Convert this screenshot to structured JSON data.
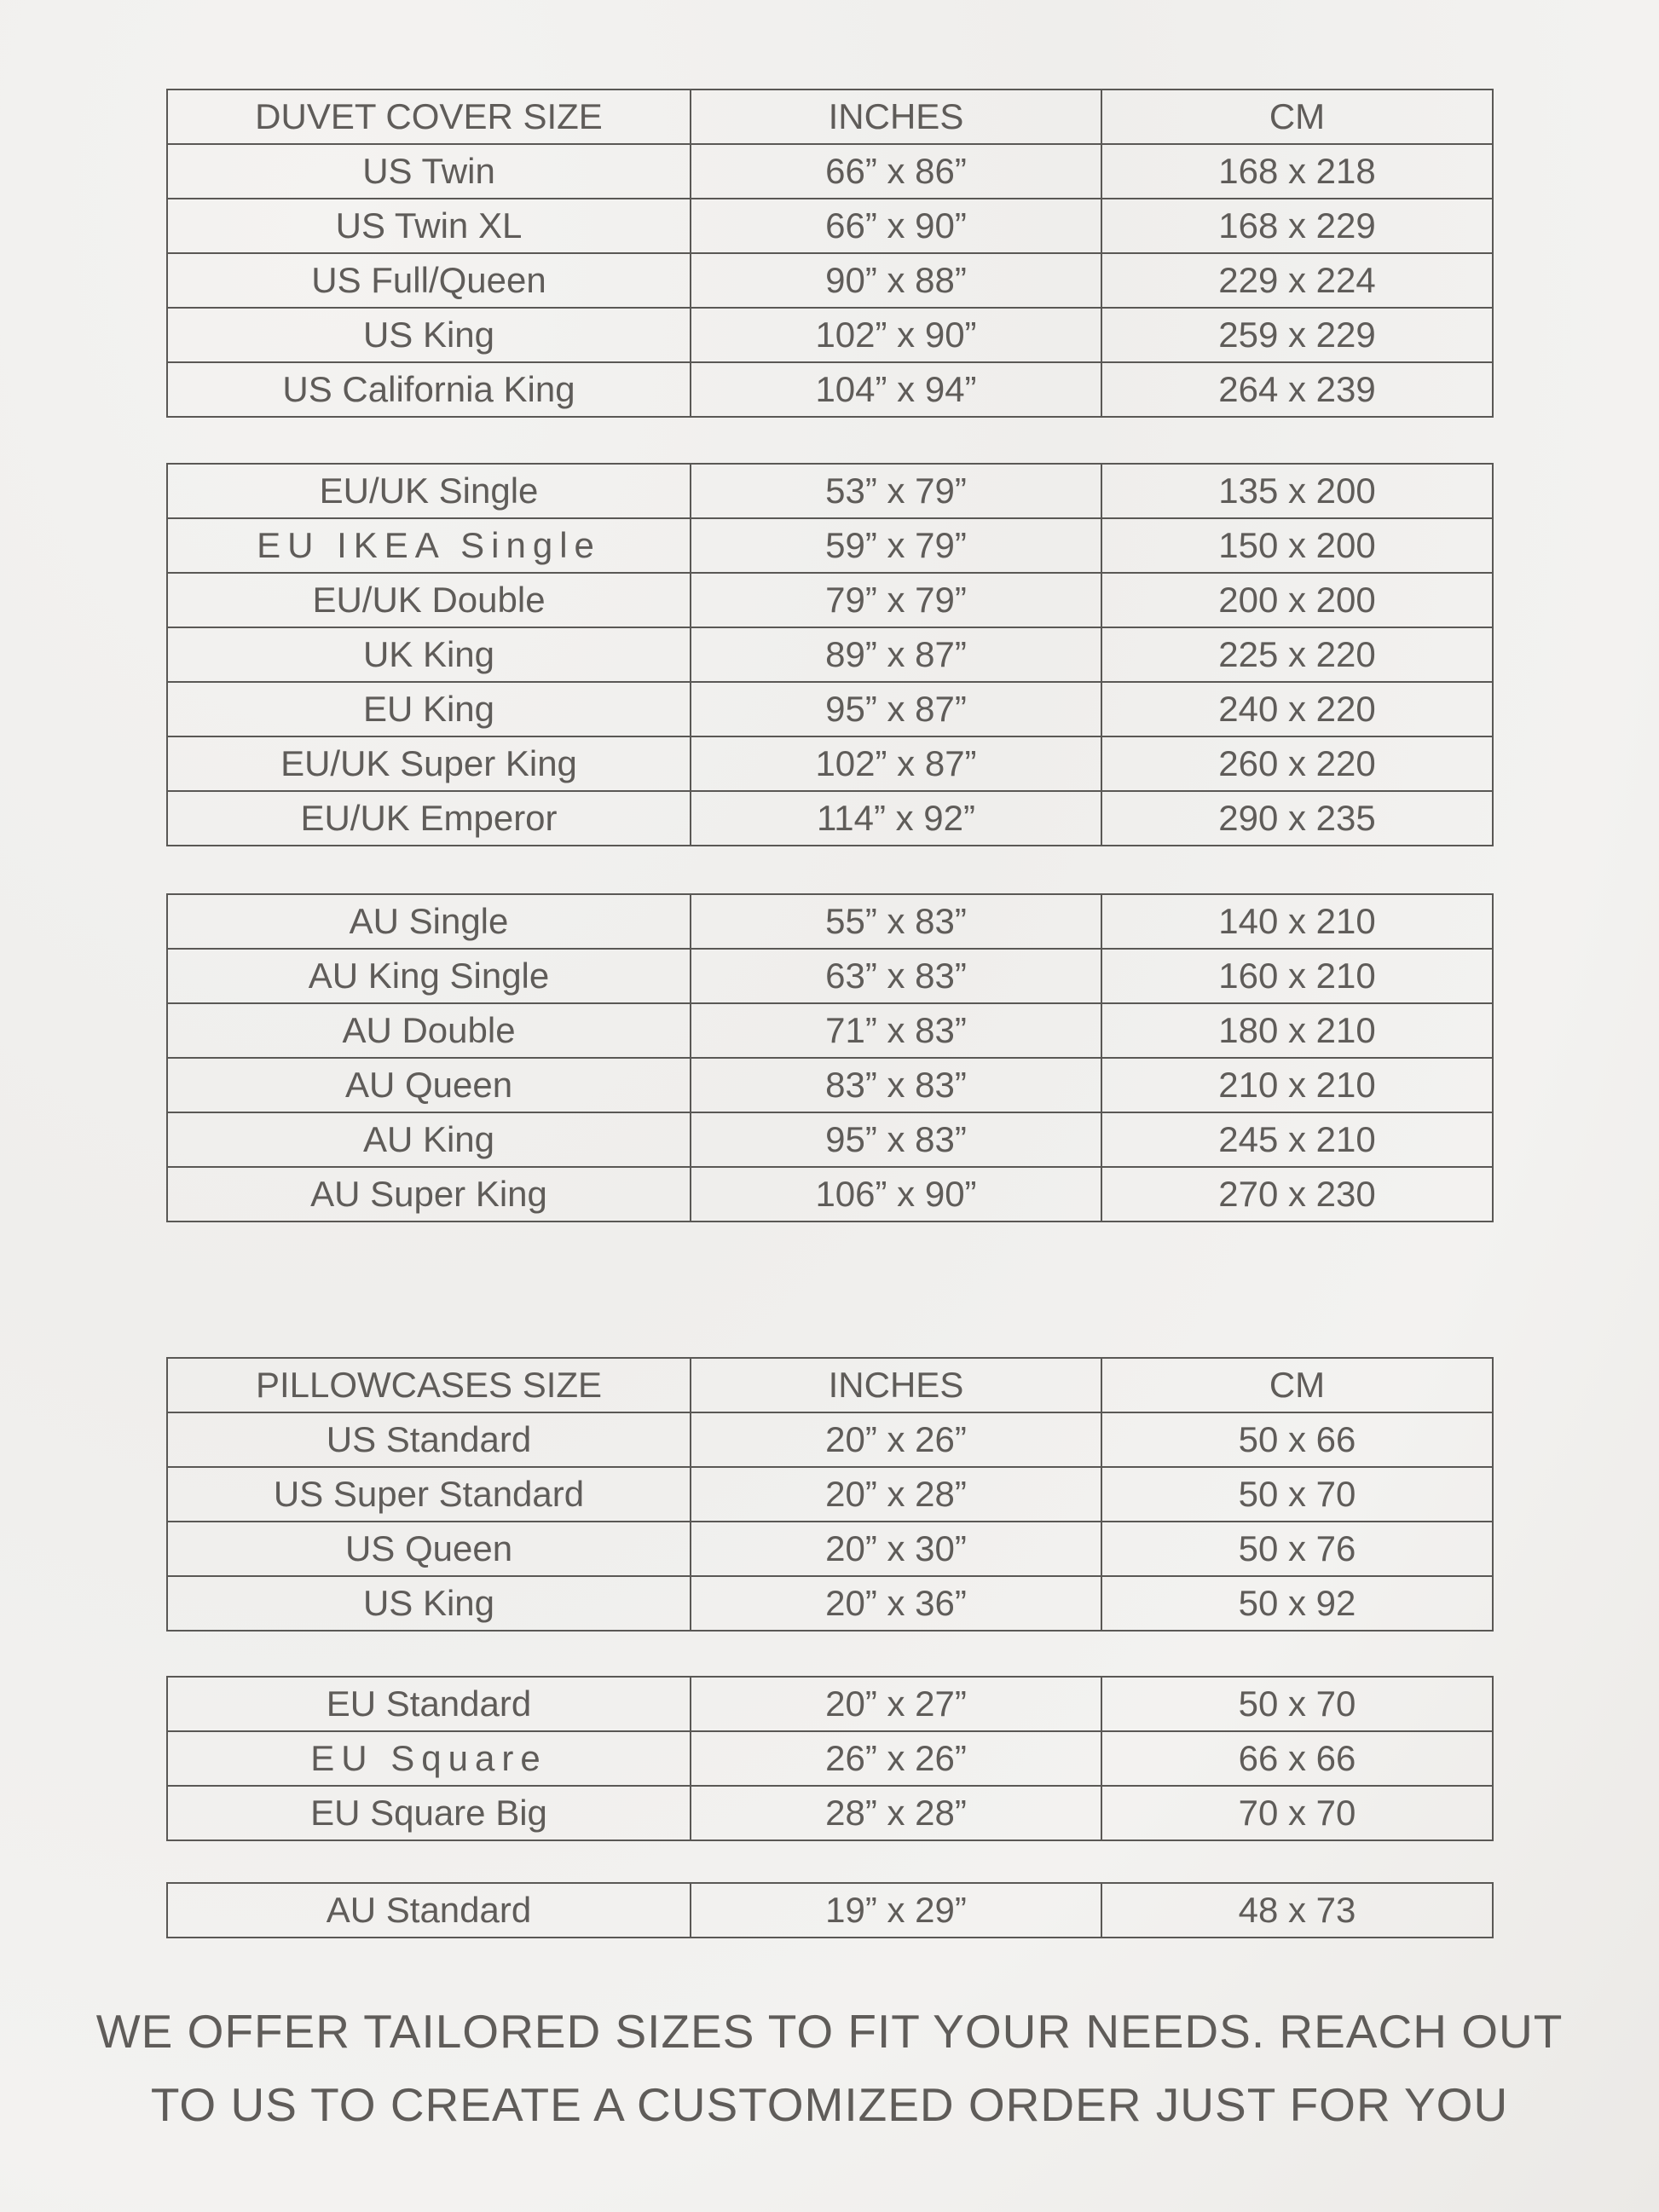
{
  "duvet": {
    "header": [
      "DUVET COVER SIZE",
      "INCHES",
      "CM"
    ],
    "groups": [
      [
        [
          "US Twin",
          "66” x 86”",
          "168 x 218"
        ],
        [
          "US Twin XL",
          "66” x 90”",
          "168 x 229"
        ],
        [
          "US Full/Queen",
          "90” x 88”",
          "229 x 224"
        ],
        [
          "US King",
          "102” x 90”",
          "259 x 229"
        ],
        [
          "US California King",
          "104” x 94”",
          "264 x 239"
        ]
      ],
      [
        [
          "EU/UK Single",
          "53” x 79”",
          "135 x 200"
        ],
        [
          "EU IKEA Single",
          "59” x 79”",
          "150 x 200"
        ],
        [
          "EU/UK Double",
          "79” x 79”",
          "200 x 200"
        ],
        [
          "UK King",
          "89” x 87”",
          "225 x 220"
        ],
        [
          "EU King",
          "95” x 87”",
          "240 x 220"
        ],
        [
          "EU/UK Super King",
          "102” x 87”",
          "260 x 220"
        ],
        [
          "EU/UK Emperor",
          "114” x 92”",
          "290 x 235"
        ]
      ],
      [
        [
          "AU Single",
          "55” x 83”",
          "140 x 210"
        ],
        [
          "AU King Single",
          "63” x 83”",
          "160 x 210"
        ],
        [
          "AU Double",
          "71” x 83”",
          "180 x 210"
        ],
        [
          "AU Queen",
          "83” x 83”",
          "210 x 210"
        ],
        [
          "AU King",
          "95” x 83”",
          "245 x 210"
        ],
        [
          "AU Super King",
          "106” x 90”",
          "270 x 230"
        ]
      ]
    ]
  },
  "pillowcases": {
    "header": [
      "PILLOWCASES SIZE",
      "INCHES",
      "CM"
    ],
    "groups": [
      [
        [
          "US Standard",
          "20” x 26”",
          "50 x 66"
        ],
        [
          "US Super Standard",
          "20” x 28”",
          "50 x 70"
        ],
        [
          "US Queen",
          "20” x 30”",
          "50 x 76"
        ],
        [
          "US King",
          "20” x 36”",
          "50 x 92"
        ]
      ],
      [
        [
          "EU Standard",
          "20” x 27”",
          "50 x 70"
        ],
        [
          "EU Square",
          "26” x 26”",
          "66 x 66"
        ],
        [
          "EU Square Big",
          "28” x 28”",
          "70 x 70"
        ]
      ],
      [
        [
          "AU Standard",
          "19” x 29”",
          "48 x 73"
        ]
      ]
    ]
  },
  "footer": {
    "line1": "WE OFFER TAILORED SIZES TO FIT YOUR NEEDS. REACH OUT",
    "line2": "TO US TO CREATE A CUSTOMIZED ORDER JUST FOR YOU"
  },
  "colors": {
    "text": "#5f5c59",
    "border": "#5a5855",
    "background": "#efeeec"
  }
}
